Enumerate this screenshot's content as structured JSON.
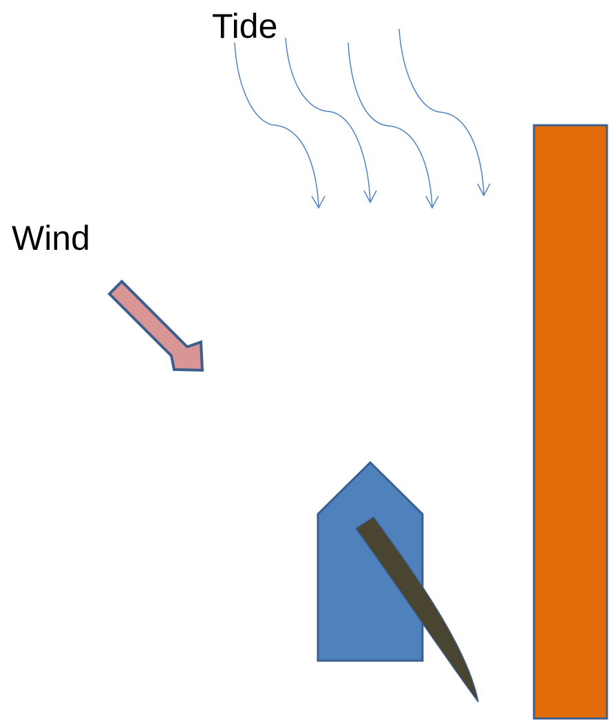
{
  "labels": {
    "tide": "Tide",
    "wind": "Wind"
  }
}
